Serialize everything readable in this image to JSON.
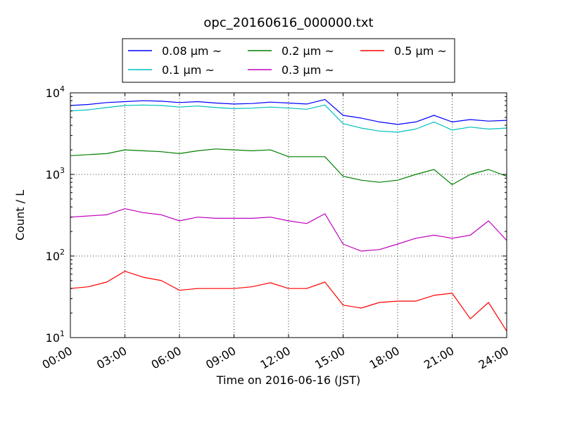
{
  "chart_data": {
    "type": "line",
    "title": "opc_20160616_000000.txt",
    "xlabel": "Time on 2016-06-16 (JST)",
    "ylabel": "Count / L",
    "x_range_hours": [
      0,
      24
    ],
    "x_ticks": [
      "00:00",
      "03:00",
      "06:00",
      "09:00",
      "12:00",
      "15:00",
      "18:00",
      "21:00",
      "24:00"
    ],
    "y_scale": "log",
    "ylim": [
      10,
      10000
    ],
    "y_ticks": [
      {
        "base": "10",
        "exp": "1"
      },
      {
        "base": "10",
        "exp": "2"
      },
      {
        "base": "10",
        "exp": "3"
      },
      {
        "base": "10",
        "exp": "4"
      }
    ],
    "grid": true,
    "legend_position": "top-center",
    "x_hours": [
      0,
      1,
      2,
      3,
      4,
      5,
      6,
      7,
      8,
      9,
      10,
      11,
      12,
      13,
      14,
      15,
      16,
      17,
      18,
      19,
      20,
      21,
      22,
      23,
      24
    ],
    "series": [
      {
        "name": "0.08 μm ~",
        "color": "#0000ff",
        "values": [
          7000,
          7200,
          7600,
          7800,
          8000,
          7900,
          7600,
          7800,
          7500,
          7300,
          7400,
          7700,
          7500,
          7300,
          8300,
          5300,
          4900,
          4400,
          4100,
          4400,
          5300,
          4400,
          4700,
          4500,
          4600
        ]
      },
      {
        "name": "0.1 μm ~",
        "color": "#00bfbf",
        "values": [
          6000,
          6200,
          6600,
          7000,
          7100,
          7000,
          6700,
          6900,
          6600,
          6400,
          6500,
          6700,
          6500,
          6300,
          7100,
          4200,
          3700,
          3400,
          3300,
          3600,
          4400,
          3500,
          3800,
          3600,
          3700
        ]
      },
      {
        "name": "0.2 μm ~",
        "color": "#008000",
        "values": [
          1700,
          1750,
          1800,
          2000,
          1950,
          1900,
          1800,
          1950,
          2050,
          2000,
          1950,
          2000,
          1650,
          1650,
          1650,
          950,
          850,
          800,
          850,
          1000,
          1150,
          750,
          1000,
          1150,
          950
        ]
      },
      {
        "name": "0.3 μm ~",
        "color": "#bf00bf",
        "values": [
          300,
          310,
          320,
          380,
          340,
          320,
          270,
          300,
          290,
          290,
          290,
          300,
          270,
          250,
          330,
          140,
          115,
          120,
          140,
          165,
          180,
          165,
          180,
          270,
          155
        ]
      },
      {
        "name": "0.5 μm ~",
        "color": "#ff0000",
        "values": [
          40,
          42,
          48,
          65,
          55,
          50,
          38,
          40,
          40,
          40,
          42,
          47,
          40,
          40,
          48,
          25,
          23,
          27,
          28,
          28,
          33,
          35,
          17,
          27,
          12
        ]
      }
    ]
  }
}
